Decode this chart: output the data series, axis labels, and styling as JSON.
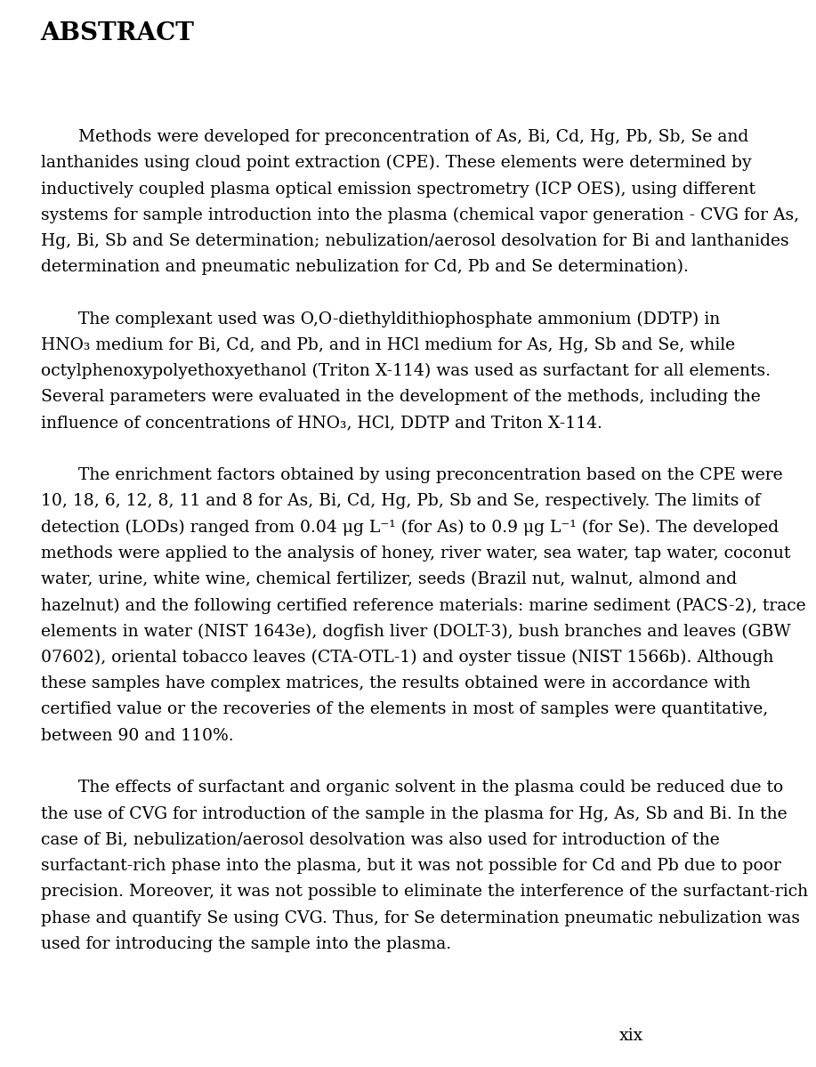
{
  "background_color": "#ffffff",
  "title": "ABSTRACT",
  "body_fontsize": 13.5,
  "body_font": "DejaVu Serif",
  "page_number": "xix",
  "paragraphs": [
    {
      "indent": true,
      "lines": [
        "Methods were developed for preconcentration of As, Bi, Cd, Hg, Pb, Sb, Se and",
        "lanthanides using cloud point extraction (CPE). These elements were determined by",
        "inductively coupled plasma optical emission spectrometry (ICP OES), using different",
        "systems for sample introduction into the plasma (chemical vapor generation - CVG for As,",
        "Hg, Bi, Sb and Se determination; nebulization/aerosol desolvation for Bi and lanthanides",
        "determination and pneumatic nebulization for Cd, Pb and Se determination)."
      ]
    },
    {
      "indent": true,
      "lines": [
        "The complexant used was O,O-diethyldithiophosphate ammonium (DDTP) in",
        "HNO₃ medium for Bi, Cd, and Pb, and in HCl medium for As, Hg, Sb and Se, while",
        "octylphenoxypolyethoxyethanol (Triton X-114) was used as surfactant for all elements.",
        "Several parameters were evaluated in the development of the methods, including the",
        "influence of concentrations of HNO₃, HCl, DDTP and Triton X-114."
      ],
      "italic_word_in_line0": "O,O"
    },
    {
      "indent": true,
      "lines": [
        "The enrichment factors obtained by using preconcentration based on the CPE were",
        "10, 18, 6, 12, 8, 11 and 8 for As, Bi, Cd, Hg, Pb, Sb and Se, respectively. The limits of",
        "detection (LODs) ranged from 0.04 μg L⁻¹ (for As) to 0.9 μg L⁻¹ (for Se). The developed",
        "methods were applied to the analysis of honey, river water, sea water, tap water, coconut",
        "water, urine, white wine, chemical fertilizer, seeds (Brazil nut, walnut, almond and",
        "hazelnut) and the following certified reference materials: marine sediment (PACS-2), trace",
        "elements in water (NIST 1643e), dogfish liver (DOLT-3), bush branches and leaves (GBW",
        "07602), oriental tobacco leaves (CTA-OTL-1) and oyster tissue (NIST 1566b). Although",
        "these samples have complex matrices, the results obtained were in accordance with",
        "certified value or the recoveries of the elements in most of samples were quantitative,",
        "between 90 and 110%."
      ]
    },
    {
      "indent": true,
      "lines": [
        "The effects of surfactant and organic solvent in the plasma could be reduced due to",
        "the use of CVG for introduction of the sample in the plasma for Hg, As, Sb and Bi. In the",
        "case of Bi, nebulization/aerosol desolvation was also used for introduction of the",
        "surfactant-rich phase into the plasma, but it was not possible for Cd and Pb due to poor",
        "precision. Moreover, it was not possible to eliminate the interference of the surfactant-rich",
        "phase and quantify Se using CVG. Thus, for Se determination pneumatic nebulization was",
        "used for introducing the sample into the plasma."
      ]
    }
  ]
}
